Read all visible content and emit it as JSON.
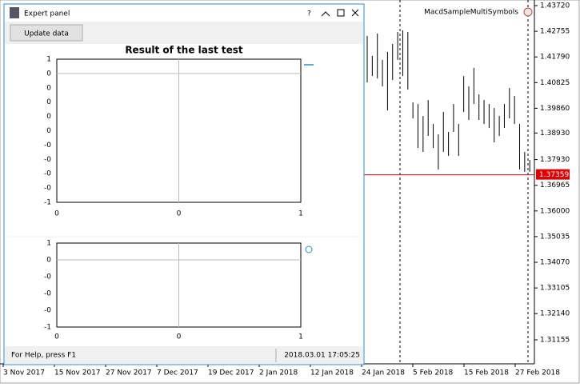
{
  "window": {
    "title": "Expert panel",
    "button": "Update data",
    "status_left": "For Help, press F1",
    "status_right": "2018.03.01 17:05:25"
  },
  "chart1": {
    "title": "Result of the last test",
    "yticks": [
      "1",
      "0",
      "0",
      "0",
      "0",
      "0",
      "-0",
      "-0",
      "-0",
      "-0",
      "-1"
    ],
    "xticks": [
      "0",
      "0",
      "1"
    ]
  },
  "chart2": {
    "yticks": [
      "1",
      "0",
      "-0",
      "-0",
      "-0",
      "-1"
    ],
    "xticks": [
      "0",
      "0",
      "1"
    ]
  },
  "price_chart": {
    "symbol": "MacdSampleMultiSymbols",
    "current_price": "1.37359",
    "price_ticks": [
      "1.43720",
      "1.42755",
      "1.41790",
      "1.40825",
      "1.39860",
      "1.38930",
      "1.37930",
      "1.36965",
      "1.36000",
      "1.35035",
      "1.34070",
      "1.33105",
      "1.32140",
      "1.31155"
    ],
    "dates": [
      "3 Nov 2017",
      "15 Nov 2017",
      "27 Nov 2017",
      "7 Dec 2017",
      "19 Dec 2017",
      "2 Jan 2018",
      "12 Jan 2018",
      "24 Jan 2018",
      "5 Feb 2018",
      "15 Feb 2018",
      "27 Feb 2018"
    ],
    "bars": [
      {
        "high": 1.4258,
        "low": 1.4083
      },
      {
        "high": 1.4183,
        "low": 1.4107
      },
      {
        "high": 1.4267,
        "low": 1.4098
      },
      {
        "high": 1.4168,
        "low": 1.4068
      },
      {
        "high": 1.4198,
        "low": 1.3978
      },
      {
        "high": 1.4228,
        "low": 1.4092
      },
      {
        "high": 1.4273,
        "low": 1.4168
      },
      {
        "high": 1.4279,
        "low": 1.4107
      },
      {
        "high": 1.4273,
        "low": 1.4056
      },
      {
        "high": 1.4008,
        "low": 1.3948
      },
      {
        "high": 1.4002,
        "low": 1.3837
      },
      {
        "high": 1.3957,
        "low": 1.3822
      },
      {
        "high": 1.4017,
        "low": 1.3882
      },
      {
        "high": 1.3927,
        "low": 1.3837
      },
      {
        "high": 1.3888,
        "low": 1.3756
      },
      {
        "high": 1.3972,
        "low": 1.3822
      },
      {
        "high": 1.3897,
        "low": 1.3807
      },
      {
        "high": 1.4002,
        "low": 1.3897
      },
      {
        "high": 1.3927,
        "low": 1.3807
      },
      {
        "high": 1.4107,
        "low": 1.3972
      },
      {
        "high": 1.4068,
        "low": 1.3942
      },
      {
        "high": 1.4138,
        "low": 1.4002
      },
      {
        "high": 1.4038,
        "low": 1.3942
      },
      {
        "high": 1.4017,
        "low": 1.3927
      },
      {
        "high": 1.4002,
        "low": 1.3912
      },
      {
        "high": 1.3987,
        "low": 1.3858
      },
      {
        "high": 1.3957,
        "low": 1.3882
      },
      {
        "high": 1.4002,
        "low": 1.3912
      },
      {
        "high": 1.4062,
        "low": 1.3948
      },
      {
        "high": 1.4032,
        "low": 1.3927
      },
      {
        "high": 1.3927,
        "low": 1.3756
      },
      {
        "high": 1.3822,
        "low": 1.3747
      },
      {
        "high": 1.3792,
        "low": 1.3747
      }
    ]
  }
}
